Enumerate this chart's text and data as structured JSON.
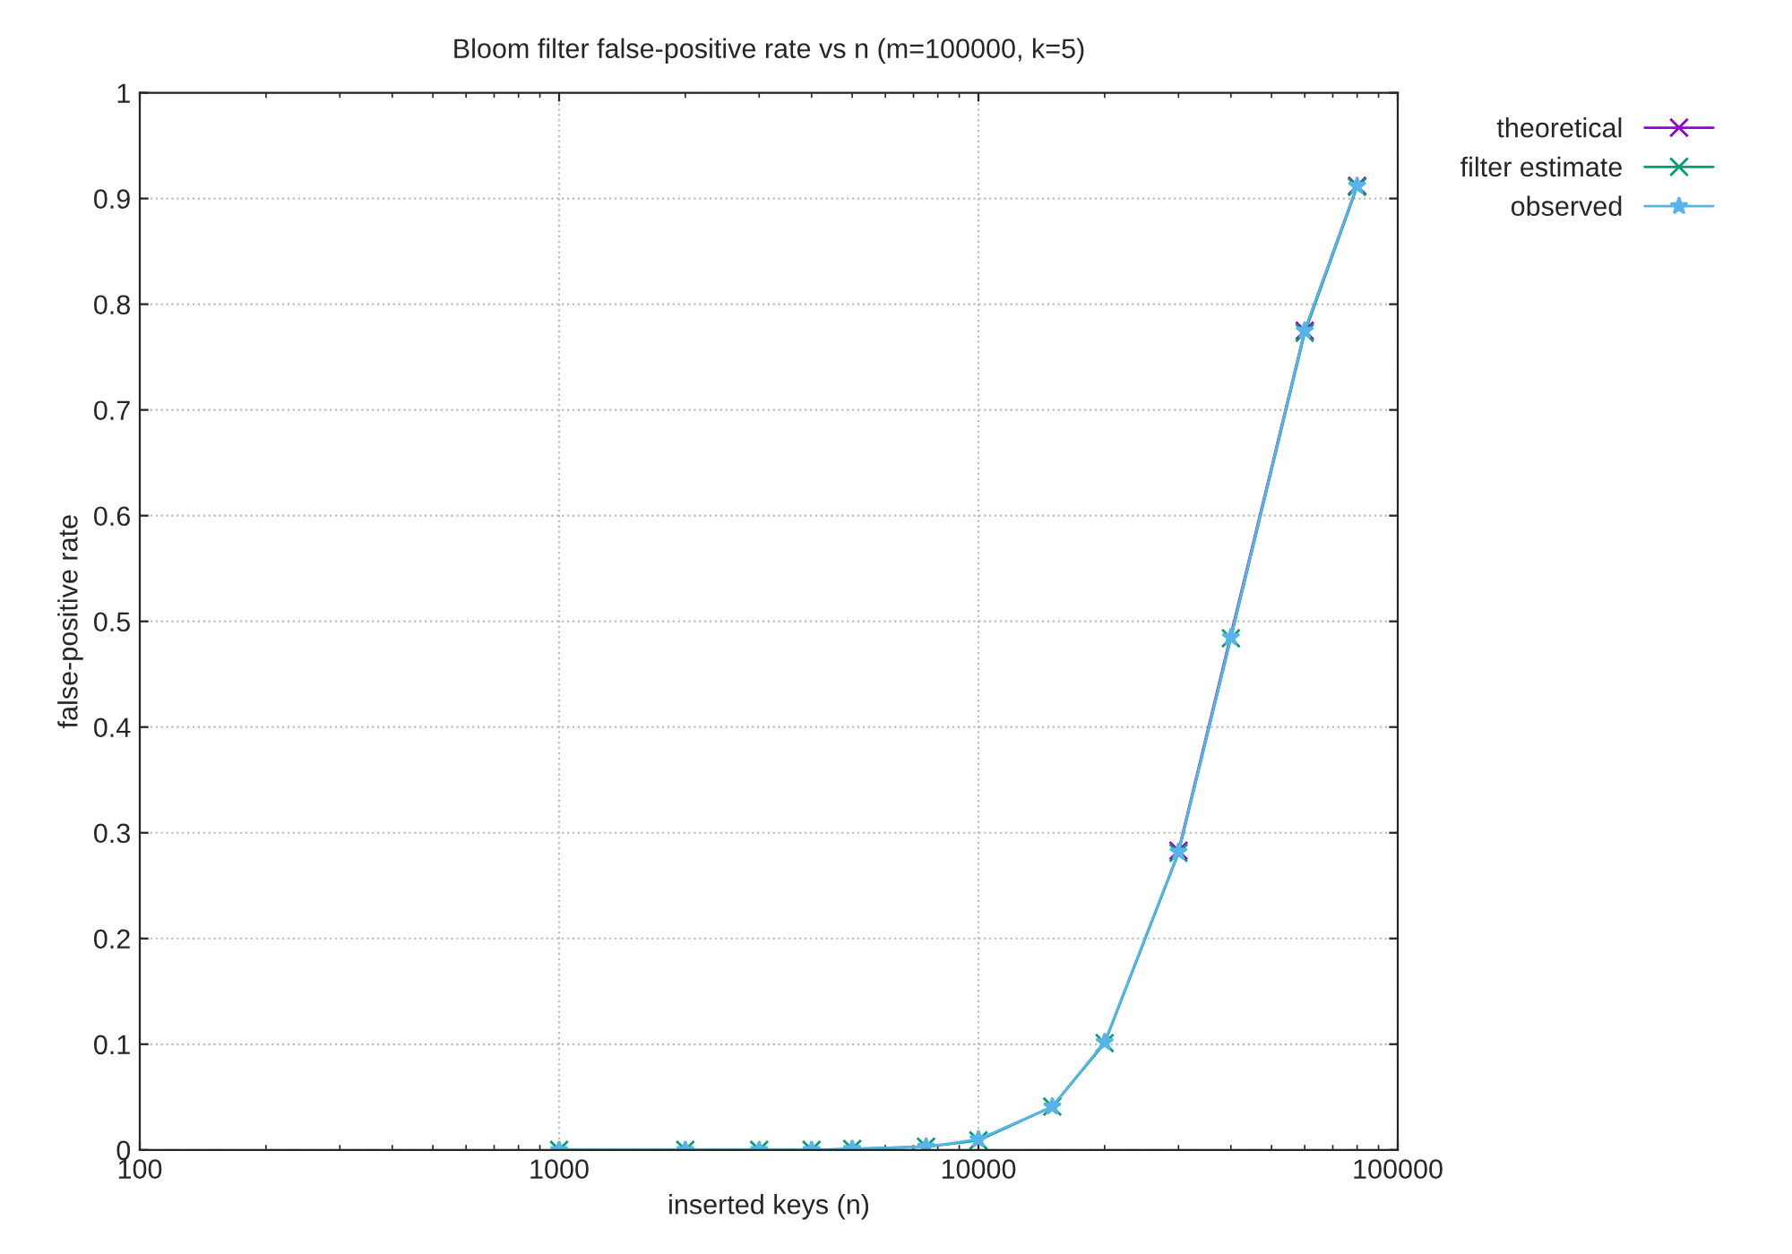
{
  "chart_data": {
    "type": "line",
    "title": "Bloom filter false-positive rate vs n (m=100000, k=5)",
    "xlabel": "inserted keys (n)",
    "ylabel": "false-positive rate",
    "x": [
      1000,
      2000,
      3000,
      4000,
      5000,
      7500,
      10000,
      15000,
      20000,
      30000,
      40000,
      60000,
      80000
    ],
    "series": [
      {
        "name": "theoretical",
        "color": "#9400d3",
        "marker": "cross",
        "values": [
          null,
          null,
          null,
          null,
          null,
          null,
          null,
          null,
          null,
          0.283,
          null,
          0.775,
          0.912
        ]
      },
      {
        "name": "filter estimate",
        "color": "#009e73",
        "marker": "cross",
        "values": [
          0,
          0,
          0,
          0,
          0.001,
          0.003,
          0.009,
          0.041,
          0.101,
          0.281,
          0.484,
          0.773,
          0.911
        ]
      },
      {
        "name": "observed",
        "color": "#56b4e9",
        "marker": "star",
        "values": [
          0,
          0,
          0,
          0,
          0.001,
          0.003,
          0.01,
          0.041,
          0.102,
          0.282,
          0.485,
          0.775,
          0.912
        ]
      }
    ],
    "log": "x",
    "xlim": [
      100,
      100000
    ],
    "xticks": [
      100,
      1000,
      10000,
      100000
    ],
    "ylim": [
      0,
      1
    ],
    "yticks": [
      0,
      0.1,
      0.2,
      0.3,
      0.4,
      0.5,
      0.6,
      0.7,
      0.8,
      0.9,
      1
    ],
    "grid": true,
    "legend": "top right",
    "line_style": "solid"
  }
}
